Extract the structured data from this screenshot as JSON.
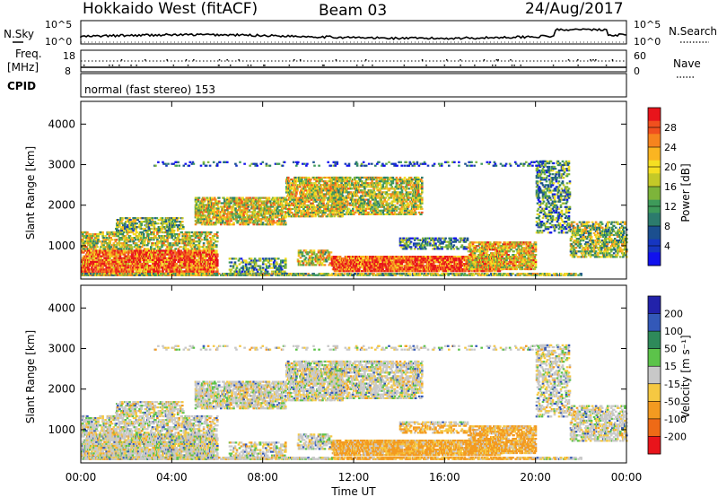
{
  "header": {
    "radar": "Hokkaido West (fitACF)",
    "beam": "Beam 03",
    "date": "24/Aug/2017"
  },
  "noise_panel": {
    "left_label": "N.Sky",
    "right_label": "N.Search",
    "left_ticks": [
      "10^5",
      "10^0"
    ],
    "right_ticks": [
      "10^5",
      "10^0"
    ]
  },
  "freq_panel": {
    "left_label_1": "Freq.",
    "left_label_2": "[MHz]",
    "left_ticks": [
      "18",
      "8"
    ],
    "right_label": "Nave",
    "right_ticks": [
      "60",
      "0"
    ]
  },
  "cpid": {
    "label": "CPID",
    "value": "normal (fast stereo) 153"
  },
  "chart_data": [
    {
      "type": "heatmap",
      "title": "",
      "xlabel": "",
      "ylabel": "Slant Range [km]",
      "quantity": "Power",
      "colorbar_label": "Power [dB]",
      "colorbar_ticks": [
        "28",
        "24",
        "20",
        "16",
        "12",
        "8",
        "4"
      ],
      "colorbar_colors": [
        "#e8141b",
        "#f0501e",
        "#f6841e",
        "#fbb521",
        "#f5df22",
        "#c4c928",
        "#7db43a",
        "#3e9a5a",
        "#2c7b6d",
        "#1b4f8f",
        "#1636c1",
        "#1111ee"
      ],
      "y_ticks": [
        "4000",
        "3000",
        "2000",
        "1000"
      ],
      "ylim": [
        180,
        4560
      ],
      "x_ticks": [
        "00:00",
        "04:00",
        "08:00",
        "12:00",
        "16:00",
        "20:00",
        "00:00"
      ],
      "xlim_hours": [
        0,
        24
      ]
    },
    {
      "type": "heatmap",
      "title": "",
      "xlabel": "Time UT",
      "ylabel": "Slant Range [km]",
      "quantity": "Velocity",
      "colorbar_label": "Velocity [m s⁻¹]",
      "colorbar_ticks": [
        "200",
        "100",
        "50",
        "15",
        "-15",
        "-50",
        "-100",
        "-200"
      ],
      "colorbar_colors": [
        "#2222aa",
        "#3358b8",
        "#2e8a5a",
        "#5cc34a",
        "#c8c8c8",
        "#f5c842",
        "#f39a20",
        "#ee6a16",
        "#e8141b"
      ],
      "y_ticks": [
        "4000",
        "3000",
        "2000",
        "1000"
      ],
      "ylim": [
        180,
        4560
      ],
      "x_ticks": [
        "00:00",
        "04:00",
        "08:00",
        "12:00",
        "16:00",
        "20:00",
        "00:00"
      ],
      "xlim_hours": [
        0,
        24
      ]
    }
  ]
}
